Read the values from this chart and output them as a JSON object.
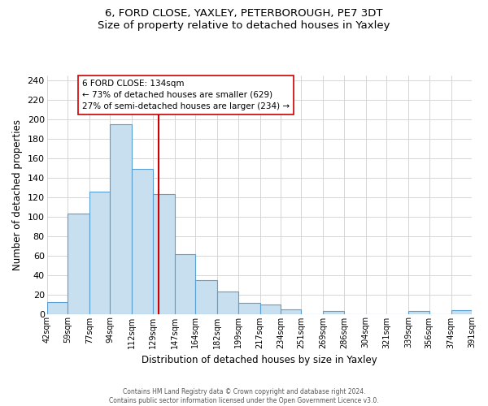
{
  "title": "6, FORD CLOSE, YAXLEY, PETERBOROUGH, PE7 3DT",
  "subtitle": "Size of property relative to detached houses in Yaxley",
  "xlabel": "Distribution of detached houses by size in Yaxley",
  "ylabel": "Number of detached properties",
  "bin_labels": [
    "42sqm",
    "59sqm",
    "77sqm",
    "94sqm",
    "112sqm",
    "129sqm",
    "147sqm",
    "164sqm",
    "182sqm",
    "199sqm",
    "217sqm",
    "234sqm",
    "251sqm",
    "269sqm",
    "286sqm",
    "304sqm",
    "321sqm",
    "339sqm",
    "356sqm",
    "374sqm",
    "391sqm"
  ],
  "bar_heights": [
    12,
    103,
    126,
    195,
    149,
    123,
    61,
    35,
    23,
    11,
    10,
    5,
    0,
    3,
    0,
    0,
    0,
    3,
    0,
    4
  ],
  "bar_color": "#c8dff0",
  "bar_edge_color": "#5a9fd4",
  "vline_color": "#cc0000",
  "annotation_title": "6 FORD CLOSE: 134sqm",
  "annotation_line1": "← 73% of detached houses are smaller (629)",
  "annotation_line2": "27% of semi-detached houses are larger (234) →",
  "annotation_box_color": "#ffffff",
  "annotation_box_edge": "#cc0000",
  "ylim": [
    0,
    245
  ],
  "yticks": [
    0,
    20,
    40,
    60,
    80,
    100,
    120,
    140,
    160,
    180,
    200,
    220,
    240
  ],
  "footer1": "Contains HM Land Registry data © Crown copyright and database right 2024.",
  "footer2": "Contains public sector information licensed under the Open Government Licence v3.0.",
  "bin_edges": [
    42,
    59,
    77,
    94,
    112,
    129,
    147,
    164,
    182,
    199,
    217,
    234,
    251,
    269,
    286,
    304,
    321,
    339,
    356,
    374,
    391
  ],
  "vline_x_data": 134
}
